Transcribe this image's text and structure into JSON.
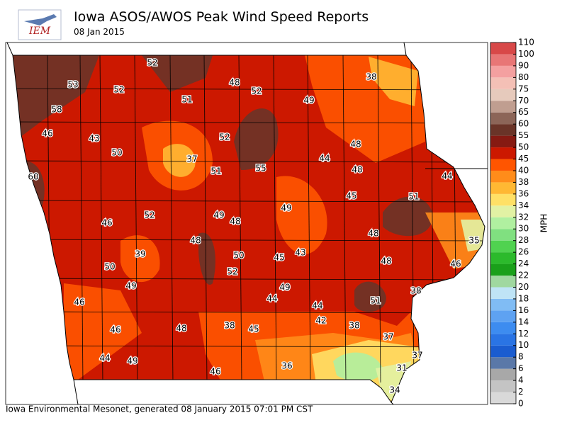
{
  "header": {
    "logo": "IEM",
    "title": "Iowa ASOS/AWOS Peak Wind Speed Reports",
    "subtitle": "08 Jan 2015"
  },
  "footer": "Iowa Environmental Mesonet, generated 08 January 2015 07:01 PM CST",
  "stations": [
    52,
    53,
    52,
    51,
    48,
    52,
    49,
    38,
    58,
    46,
    43,
    50,
    37,
    52,
    51,
    55,
    44,
    48,
    48,
    44,
    60,
    45,
    51,
    46,
    52,
    49,
    48,
    49,
    48,
    35,
    39,
    48,
    50,
    45,
    43,
    48,
    46,
    50,
    52,
    49,
    49,
    38,
    46,
    44,
    44,
    51,
    42,
    38,
    46,
    48,
    38,
    45,
    37,
    44,
    49,
    46,
    36,
    37,
    31,
    34
  ],
  "colorbar": {
    "label": "MPH",
    "levels": [
      0,
      2,
      4,
      6,
      8,
      10,
      12,
      14,
      16,
      18,
      20,
      22,
      24,
      26,
      28,
      30,
      32,
      34,
      36,
      38,
      40,
      45,
      50,
      55,
      60,
      65,
      70,
      75,
      80,
      90,
      100,
      110
    ],
    "colors": [
      "#d9d9d9",
      "#c4c4c4",
      "#a8a8a8",
      "#5a78a8",
      "#1a5cd0",
      "#2a74e4",
      "#3d8cf0",
      "#5ea2f2",
      "#80bcf4",
      "#bfe4f6",
      "#a0d8a0",
      "#1aa01a",
      "#2cba2c",
      "#50d250",
      "#80e080",
      "#b0f0a0",
      "#e2f2a4",
      "#ffe066",
      "#ffb833",
      "#ff8c1a",
      "#ff5500",
      "#cc1800",
      "#861a12",
      "#6a3428",
      "#8c6558",
      "#c09e90",
      "#e6cabc",
      "#f4c0b6",
      "#f4a0a0",
      "#e87676",
      "#d84848"
    ]
  }
}
